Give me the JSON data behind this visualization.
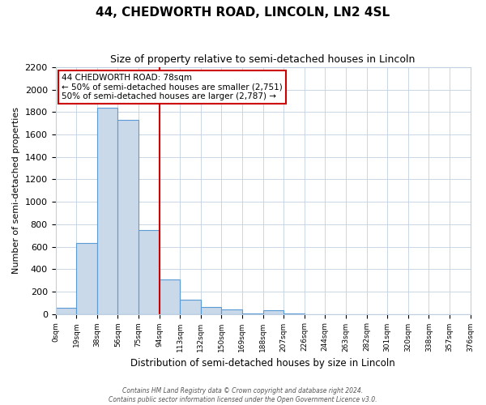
{
  "title": "44, CHEDWORTH ROAD, LINCOLN, LN2 4SL",
  "subtitle": "Size of property relative to semi-detached houses in Lincoln",
  "xlabel": "Distribution of semi-detached houses by size in Lincoln",
  "ylabel": "Number of semi-detached properties",
  "bin_labels": [
    "0sqm",
    "19sqm",
    "38sqm",
    "56sqm",
    "75sqm",
    "94sqm",
    "113sqm",
    "132sqm",
    "150sqm",
    "169sqm",
    "188sqm",
    "207sqm",
    "226sqm",
    "244sqm",
    "263sqm",
    "282sqm",
    "301sqm",
    "320sqm",
    "338sqm",
    "357sqm",
    "376sqm"
  ],
  "bar_heights": [
    55,
    630,
    1840,
    1730,
    750,
    305,
    130,
    65,
    40,
    5,
    35,
    5,
    0,
    0,
    0,
    0,
    0,
    0,
    0,
    0
  ],
  "bar_color": "#c9d9ea",
  "bar_edge_color": "#5b9bd5",
  "property_line_index": 4,
  "property_line_color": "#cc0000",
  "annotation_title": "44 CHEDWORTH ROAD: 78sqm",
  "annotation_line1": "← 50% of semi-detached houses are smaller (2,751)",
  "annotation_line2": "50% of semi-detached houses are larger (2,787) →",
  "annotation_box_color": "#ffffff",
  "annotation_box_edge": "#cc0000",
  "ylim": [
    0,
    2200
  ],
  "yticks": [
    0,
    200,
    400,
    600,
    800,
    1000,
    1200,
    1400,
    1600,
    1800,
    2000,
    2200
  ],
  "footer_line1": "Contains HM Land Registry data © Crown copyright and database right 2024.",
  "footer_line2": "Contains public sector information licensed under the Open Government Licence v3.0."
}
